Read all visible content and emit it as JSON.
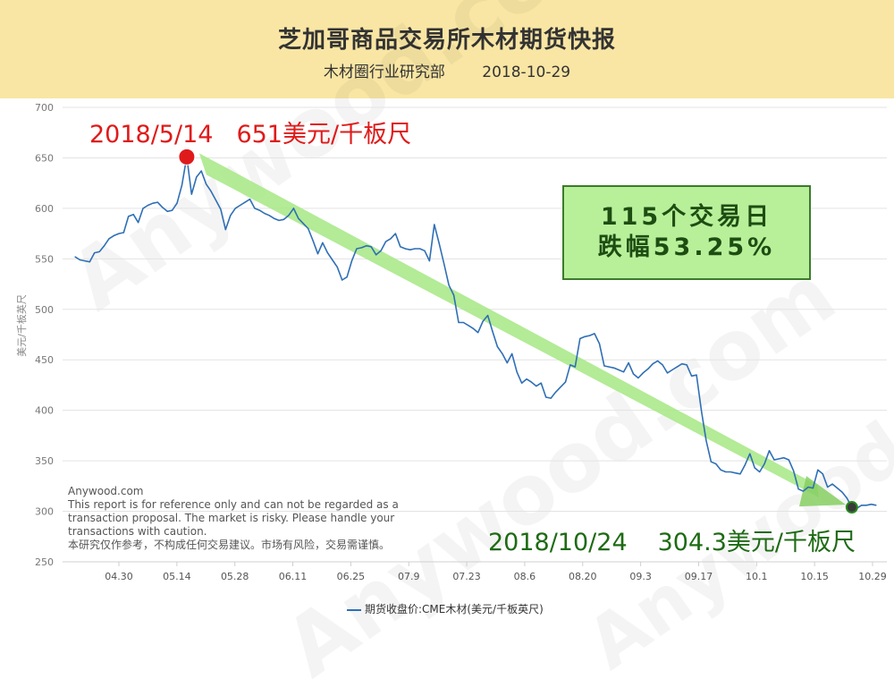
{
  "header": {
    "title": "芝加哥商品交易所木材期货快报",
    "author": "木材圈行业研究部",
    "date": "2018-10-29"
  },
  "annotations": {
    "peak_date": "2018/5/14",
    "peak_value": "651美元/千板尺",
    "last_date": "2018/10/24",
    "last_value": "304.3美元/千板尺",
    "box_line1": "115个交易日",
    "box_line2": "跌幅53.25%"
  },
  "note": {
    "site": "Anywood.com",
    "english": "This report is for reference only and can not be regarded as a transaction proposal. The market is risky. Please handle your transactions with caution.",
    "chinese": "本研究仅作参考，不构成任何交易建议。市场有风险，交易需谨慎。"
  },
  "watermark": "Anywood.com",
  "colors": {
    "header_bg": "#f9e6a4",
    "line": "#2f6fb5",
    "peak_marker": "#e01a1a",
    "last_marker": "#1e6b14",
    "arrow": "#a6e884",
    "box_bg": "#b8f09a"
  },
  "chart_data": {
    "type": "line",
    "ylabel": "美元/千板英尺",
    "ylim": [
      250,
      700
    ],
    "yticks": [
      250,
      300,
      350,
      400,
      450,
      500,
      550,
      600,
      650,
      700
    ],
    "xtick_labels": [
      "04.30",
      "05.14",
      "05.28",
      "06.11",
      "06.25",
      "07.9",
      "07.23",
      "08.6",
      "08.20",
      "09.3",
      "09.17",
      "10.1",
      "10.15",
      "10.29"
    ],
    "grid": true,
    "legend_position": "bottom",
    "series": [
      {
        "name": "期货收盘价:CME木材(美元/千板英尺)",
        "values": [
          552,
          549,
          548,
          547,
          556,
          557,
          563,
          570,
          573,
          575,
          576,
          592,
          594,
          586,
          600,
          603,
          605,
          606,
          601,
          597,
          598,
          605,
          623,
          651,
          614,
          631,
          637,
          624,
          617,
          608,
          599,
          579,
          593,
          600,
          603,
          606,
          609,
          600,
          598,
          595,
          593,
          590,
          588,
          589,
          593,
          600,
          590,
          585,
          580,
          568,
          555,
          566,
          556,
          549,
          542,
          529,
          532,
          548,
          560,
          561,
          563,
          562,
          554,
          558,
          567,
          570,
          575,
          562,
          560,
          559,
          560,
          560,
          558,
          548,
          584,
          565,
          545,
          524,
          514,
          487,
          487,
          484,
          481,
          477,
          488,
          494,
          478,
          463,
          456,
          447,
          456,
          438,
          427,
          431,
          428,
          424,
          427,
          413,
          412,
          418,
          423,
          428,
          445,
          443,
          471,
          473,
          474,
          476,
          466,
          444,
          443,
          442,
          440,
          438,
          447,
          436,
          432,
          437,
          441,
          446,
          449,
          445,
          437,
          440,
          443,
          446,
          445,
          434,
          435,
          400,
          370,
          349,
          347,
          341,
          339,
          339,
          338,
          337,
          346,
          357,
          343,
          339,
          347,
          360,
          351,
          352,
          353,
          351,
          340,
          322,
          320,
          324,
          323,
          341,
          337,
          324,
          327,
          323,
          319,
          313,
          304,
          303,
          306,
          306,
          307,
          306
        ]
      }
    ]
  }
}
